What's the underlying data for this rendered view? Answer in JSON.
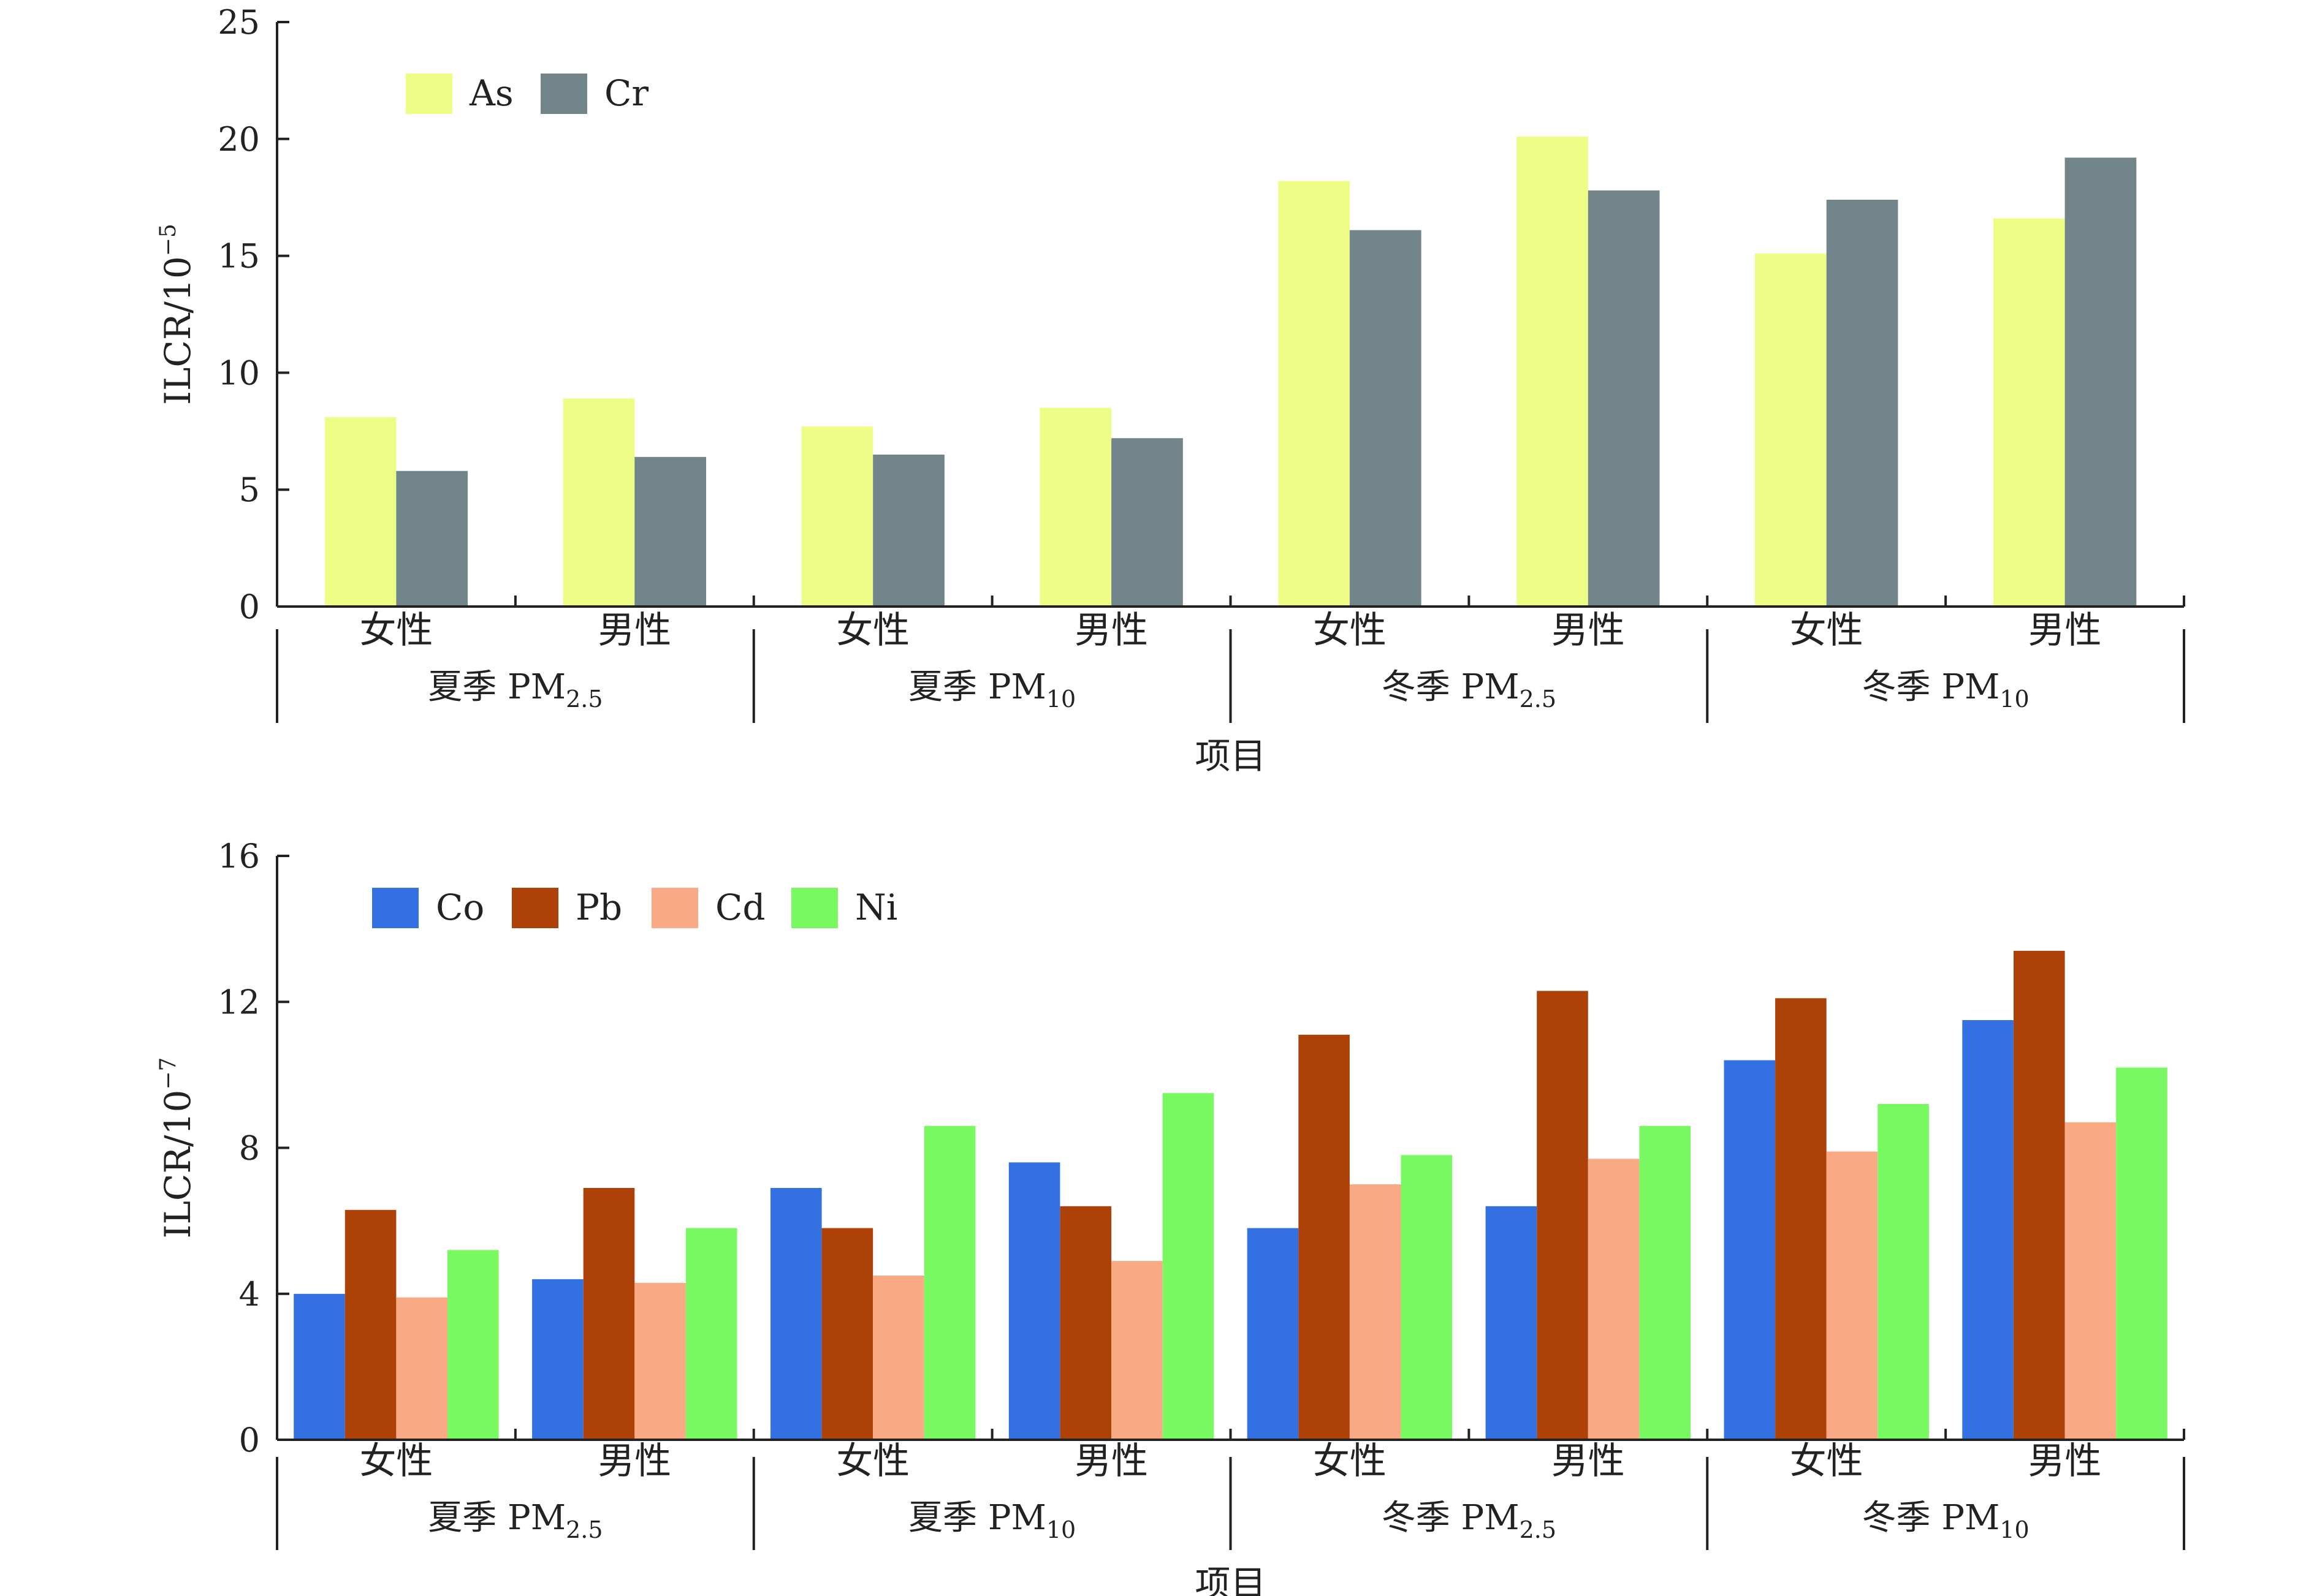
{
  "chart_data": [
    {
      "type": "bar",
      "title": "",
      "ylabel": "ILCR/10⁻⁵",
      "ylabel_base": "ILCR/10",
      "ylabel_exp": "−5",
      "xlabel": "项目",
      "ylim": [
        0,
        25
      ],
      "yticks": [
        0,
        5,
        10,
        15,
        20,
        25
      ],
      "categories": [
        "女性",
        "男性",
        "女性",
        "男性",
        "女性",
        "男性",
        "女性",
        "男性"
      ],
      "groups": [
        {
          "label": "夏季 PM₂.₅",
          "base": "夏季 PM",
          "sub": "2.5"
        },
        {
          "label": "夏季 PM₁₀",
          "base": "夏季 PM",
          "sub": "10"
        },
        {
          "label": "冬季 PM₂.₅",
          "base": "冬季 PM",
          "sub": "2.5"
        },
        {
          "label": "冬季 PM₁₀",
          "base": "冬季 PM",
          "sub": "10"
        }
      ],
      "legend_position": "top-left",
      "series": [
        {
          "name": "As",
          "color": "#EEFD85",
          "values": [
            8.1,
            8.9,
            7.7,
            8.5,
            18.2,
            20.1,
            15.1,
            16.6
          ]
        },
        {
          "name": "Cr",
          "color": "#72858B",
          "values": [
            5.8,
            6.4,
            6.5,
            7.2,
            16.1,
            17.8,
            17.4,
            19.2
          ]
        }
      ]
    },
    {
      "type": "bar",
      "title": "",
      "ylabel": "ILCR/10⁻⁷",
      "ylabel_base": "ILCR/10",
      "ylabel_exp": "−7",
      "xlabel": "项目",
      "ylim": [
        0,
        16
      ],
      "yticks": [
        0,
        4,
        8,
        12,
        16
      ],
      "categories": [
        "女性",
        "男性",
        "女性",
        "男性",
        "女性",
        "男性",
        "女性",
        "男性"
      ],
      "groups": [
        {
          "label": "夏季 PM₂.₅",
          "base": "夏季 PM",
          "sub": "2.5"
        },
        {
          "label": "夏季 PM₁₀",
          "base": "夏季 PM",
          "sub": "10"
        },
        {
          "label": "冬季 PM₂.₅",
          "base": "冬季 PM",
          "sub": "2.5"
        },
        {
          "label": "冬季 PM₁₀",
          "base": "冬季 PM",
          "sub": "10"
        }
      ],
      "legend_position": "top-left",
      "series": [
        {
          "name": "Co",
          "color": "#3370E2",
          "values": [
            4.0,
            4.4,
            6.9,
            7.6,
            5.8,
            6.4,
            10.4,
            11.5
          ]
        },
        {
          "name": "Pb",
          "color": "#AE4108",
          "values": [
            6.3,
            6.9,
            5.8,
            6.4,
            11.1,
            12.3,
            12.1,
            13.4
          ]
        },
        {
          "name": "Cd",
          "color": "#F9AA84",
          "values": [
            3.9,
            4.3,
            4.5,
            4.9,
            7.0,
            7.7,
            7.9,
            8.7
          ]
        },
        {
          "name": "Ni",
          "color": "#79F961",
          "values": [
            5.2,
            5.8,
            8.6,
            9.5,
            7.8,
            8.6,
            9.2,
            10.2
          ]
        }
      ]
    }
  ]
}
